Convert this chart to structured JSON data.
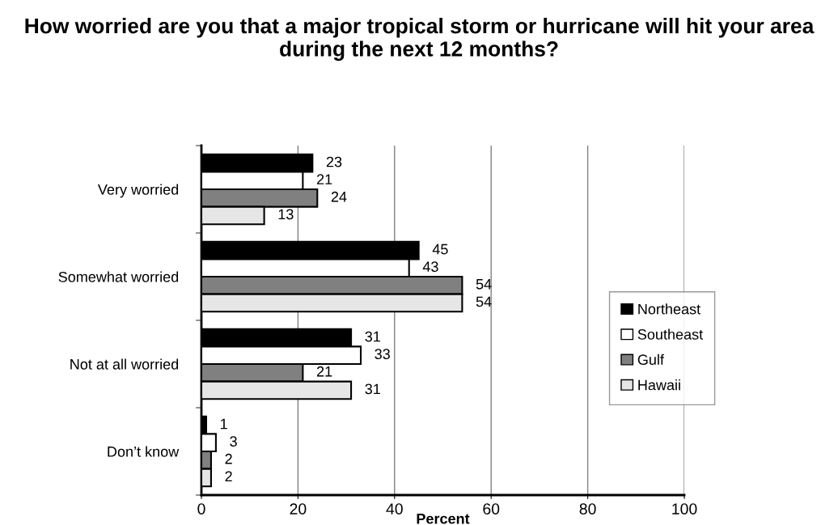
{
  "chart_data": {
    "type": "bar",
    "orientation": "horizontal",
    "title": "How worried are you that a major tropical storm or hurricane will hit your area during the next 12 months?",
    "xlabel": "Percent",
    "categories": [
      "Very worried",
      "Somewhat worried",
      "Not at all worried",
      "Don’t know"
    ],
    "series": [
      {
        "name": "Northeast",
        "color": "#000000",
        "values": [
          23,
          45,
          31,
          1
        ]
      },
      {
        "name": "Southeast",
        "color": "#ffffff",
        "values": [
          21,
          43,
          33,
          3
        ]
      },
      {
        "name": "Gulf",
        "color": "#808080",
        "values": [
          24,
          54,
          21,
          2
        ]
      },
      {
        "name": "Hawaii",
        "color": "#e6e6e6",
        "values": [
          13,
          54,
          31,
          2
        ]
      }
    ],
    "xlim": [
      0,
      100
    ],
    "xticks": [
      0,
      20,
      40,
      60,
      80,
      100
    ],
    "grid": "x",
    "legend": "right",
    "data_labels": true
  }
}
